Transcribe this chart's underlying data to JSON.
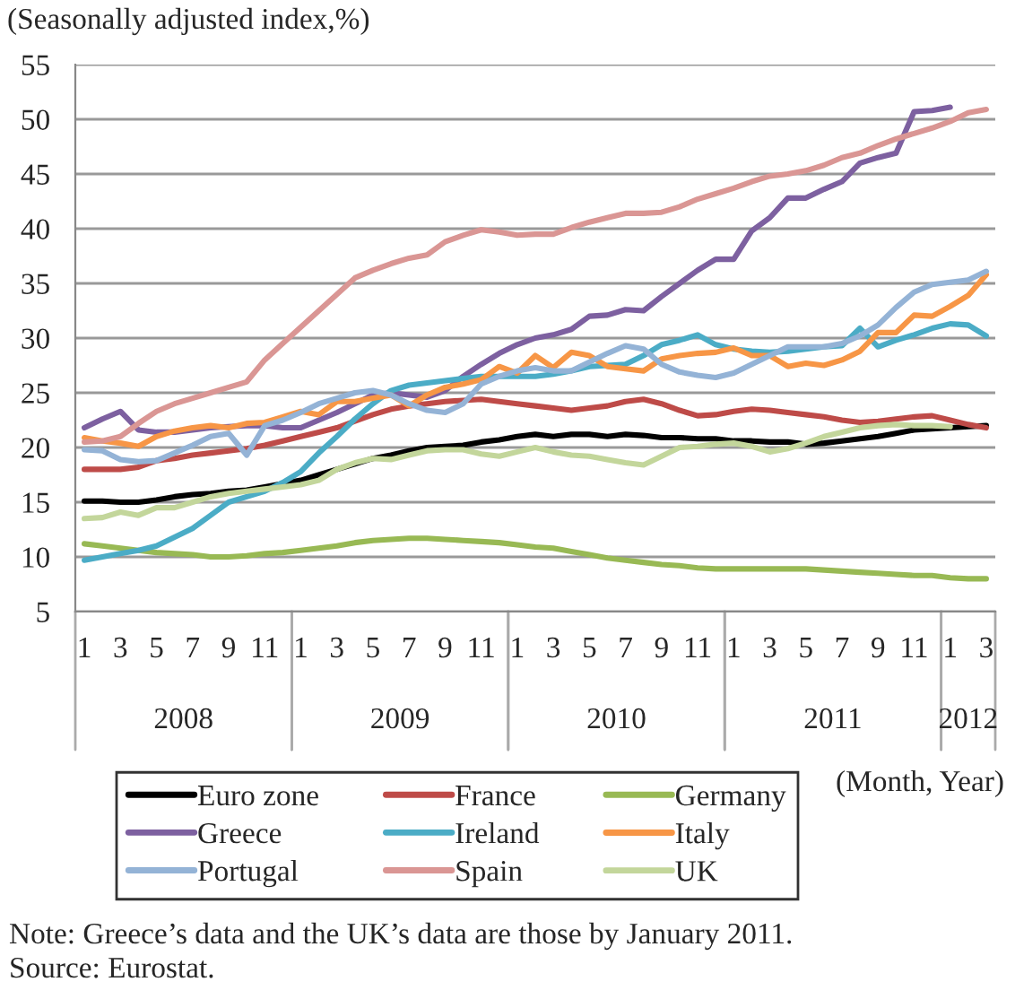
{
  "chart_data": {
    "type": "line",
    "ylabel": "(Seasonally adjusted index,%)",
    "xlabel": "(Month, Year)",
    "categories": [
      "1",
      null,
      "3",
      null,
      "5",
      null,
      "7",
      null,
      "9",
      null,
      "11",
      null,
      "1",
      null,
      "3",
      null,
      "5",
      null,
      "7",
      null,
      "9",
      null,
      "11",
      null,
      "1",
      null,
      "3",
      null,
      "5",
      null,
      "7",
      null,
      "9",
      null,
      "11",
      null,
      "1",
      null,
      "3",
      null,
      "5",
      null,
      "7",
      null,
      "9",
      null,
      "11",
      null,
      "1",
      null,
      "3"
    ],
    "ylim": [
      5,
      55
    ],
    "yticks": [
      5,
      10,
      15,
      20,
      25,
      30,
      35,
      40,
      45,
      50,
      55
    ],
    "grid": "y",
    "legend": "bottom",
    "marker": "none",
    "line_style": "solid",
    "series": [
      {
        "name": "Euro zone",
        "color": "#000000",
        "values": [
          15.1,
          15.1,
          15.0,
          15.0,
          15.2,
          15.5,
          15.7,
          15.8,
          16.0,
          16.1,
          16.4,
          16.7,
          17.0,
          17.5,
          18.0,
          18.5,
          19.0,
          19.3,
          19.7,
          20.0,
          20.1,
          20.2,
          20.5,
          20.7,
          21.0,
          21.2,
          21.0,
          21.2,
          21.2,
          21.0,
          21.2,
          21.1,
          20.9,
          20.9,
          20.8,
          20.8,
          20.6,
          20.6,
          20.5,
          20.5,
          20.3,
          20.4,
          20.6,
          20.8,
          21.0,
          21.3,
          21.6,
          21.7,
          21.8,
          21.9,
          22.0
        ]
      },
      {
        "name": "France",
        "color": "#be4b48",
        "values": [
          18.0,
          18.0,
          18.0,
          18.2,
          18.8,
          19.0,
          19.3,
          19.5,
          19.7,
          19.9,
          20.2,
          20.6,
          21.0,
          21.4,
          21.8,
          22.4,
          23.0,
          23.5,
          23.8,
          24.0,
          24.2,
          24.3,
          24.4,
          24.2,
          24.0,
          23.8,
          23.6,
          23.4,
          23.6,
          23.8,
          24.2,
          24.4,
          24.0,
          23.4,
          22.9,
          23.0,
          23.3,
          23.5,
          23.4,
          23.2,
          23.0,
          22.8,
          22.5,
          22.3,
          22.4,
          22.6,
          22.8,
          22.9,
          22.5,
          22.1,
          21.8
        ]
      },
      {
        "name": "Germany",
        "color": "#98b954",
        "values": [
          11.2,
          11.0,
          10.8,
          10.6,
          10.4,
          10.3,
          10.2,
          10.0,
          10.0,
          10.1,
          10.3,
          10.4,
          10.6,
          10.8,
          11.0,
          11.3,
          11.5,
          11.6,
          11.7,
          11.7,
          11.6,
          11.5,
          11.4,
          11.3,
          11.1,
          10.9,
          10.8,
          10.5,
          10.2,
          9.9,
          9.7,
          9.5,
          9.3,
          9.2,
          9.0,
          8.9,
          8.9,
          8.9,
          8.9,
          8.9,
          8.9,
          8.8,
          8.7,
          8.6,
          8.5,
          8.4,
          8.3,
          8.3,
          8.1,
          8.0,
          8.0
        ]
      },
      {
        "name": "Greece",
        "color": "#7d60a0",
        "values": [
          21.8,
          22.6,
          23.3,
          21.6,
          21.4,
          21.4,
          21.6,
          21.8,
          21.9,
          22.0,
          22.0,
          21.8,
          21.8,
          22.5,
          23.2,
          24.0,
          24.8,
          25.0,
          24.8,
          24.6,
          25.2,
          26.5,
          27.6,
          28.6,
          29.4,
          30.0,
          30.3,
          30.8,
          32.0,
          32.1,
          32.6,
          32.5,
          33.8,
          35.0,
          36.2,
          37.2,
          37.2,
          39.8,
          41.0,
          42.8,
          42.8,
          43.6,
          44.3,
          46.0,
          46.5,
          46.9,
          50.7,
          50.8,
          51.1,
          null,
          null
        ]
      },
      {
        "name": "Ireland",
        "color": "#4bacc6",
        "values": [
          9.7,
          10.0,
          10.3,
          10.6,
          11.0,
          11.8,
          12.6,
          13.8,
          15.0,
          15.5,
          16.0,
          16.8,
          17.8,
          19.5,
          21.0,
          22.6,
          24.0,
          25.2,
          25.7,
          25.9,
          26.1,
          26.3,
          26.5,
          26.5,
          26.5,
          26.5,
          26.7,
          27.0,
          27.4,
          27.5,
          27.6,
          28.4,
          29.4,
          29.8,
          30.3,
          29.4,
          29.0,
          28.8,
          28.7,
          28.8,
          29.0,
          29.2,
          29.3,
          30.9,
          29.2,
          29.8,
          30.3,
          30.9,
          31.3,
          31.2,
          30.2
        ]
      },
      {
        "name": "Italy",
        "color": "#f79646",
        "values": [
          20.9,
          20.6,
          20.4,
          20.1,
          21.0,
          21.5,
          21.8,
          22.0,
          21.8,
          22.2,
          22.3,
          22.8,
          23.3,
          23.0,
          24.2,
          24.2,
          24.5,
          24.8,
          23.8,
          24.8,
          25.5,
          25.8,
          26.2,
          27.4,
          26.8,
          28.4,
          27.3,
          28.7,
          28.4,
          27.4,
          27.2,
          27.0,
          28.1,
          28.4,
          28.6,
          28.7,
          29.1,
          28.4,
          28.4,
          27.4,
          27.7,
          27.5,
          28.0,
          28.8,
          30.5,
          30.5,
          32.1,
          32.0,
          32.9,
          33.9,
          35.8
        ]
      },
      {
        "name": "Portugal",
        "color": "#94b3d6",
        "values": [
          19.8,
          19.7,
          18.9,
          18.7,
          18.8,
          19.5,
          20.2,
          21.0,
          21.3,
          19.3,
          22.0,
          22.5,
          23.2,
          24.0,
          24.5,
          25.0,
          25.2,
          24.8,
          24.0,
          23.4,
          23.2,
          24.0,
          25.8,
          26.5,
          27.0,
          27.3,
          27.0,
          27.0,
          27.8,
          28.6,
          29.3,
          29.0,
          27.6,
          26.9,
          26.6,
          26.4,
          26.8,
          27.6,
          28.4,
          29.2,
          29.2,
          29.2,
          29.5,
          30.2,
          31.2,
          32.8,
          34.2,
          34.9,
          35.1,
          35.3,
          36.1
        ]
      },
      {
        "name": "Spain",
        "color": "#da9694",
        "values": [
          20.5,
          20.6,
          21.0,
          22.2,
          23.3,
          24.0,
          24.5,
          25.0,
          25.5,
          26.0,
          28.0,
          29.5,
          31.0,
          32.5,
          34.0,
          35.5,
          36.2,
          36.8,
          37.3,
          37.6,
          38.8,
          39.4,
          39.9,
          39.7,
          39.4,
          39.5,
          39.5,
          40.1,
          40.6,
          41.0,
          41.4,
          41.4,
          41.5,
          42.0,
          42.7,
          43.2,
          43.7,
          44.3,
          44.8,
          45.0,
          45.3,
          45.8,
          46.5,
          46.9,
          47.6,
          48.2,
          48.7,
          49.2,
          49.8,
          50.6,
          50.9
        ]
      },
      {
        "name": "UK",
        "color": "#c3d69b",
        "values": [
          13.5,
          13.6,
          14.1,
          13.8,
          14.5,
          14.5,
          15.0,
          15.5,
          15.8,
          16.0,
          16.2,
          16.4,
          16.6,
          17.0,
          18.0,
          18.6,
          19.0,
          18.9,
          19.3,
          19.7,
          19.8,
          19.8,
          19.4,
          19.2,
          19.6,
          20.0,
          19.6,
          19.3,
          19.2,
          18.9,
          18.6,
          18.4,
          19.2,
          20.0,
          20.1,
          20.3,
          20.4,
          20.1,
          19.6,
          19.9,
          20.4,
          21.0,
          21.4,
          21.8,
          22.0,
          22.1,
          22.0,
          22.0,
          21.9,
          null,
          null
        ]
      }
    ],
    "annotations": [
      {
        "text": "2008"
      },
      {
        "text": "2009"
      },
      {
        "text": "2010"
      },
      {
        "text": "2011"
      },
      {
        "text": "2012"
      },
      "Note: Greece’s data and the UK’s data are those by January 2011.",
      "Source: Eurostat."
    ]
  }
}
